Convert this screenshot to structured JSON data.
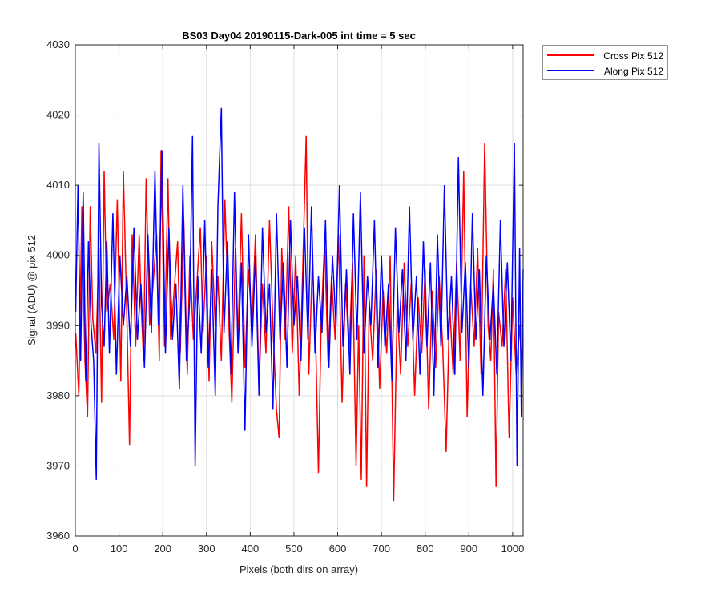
{
  "chart_data": {
    "type": "line",
    "title": "BS03 Day04 20190115-Dark-005 int time = 5 sec",
    "xlabel": "Pixels (both dirs on array)",
    "ylabel": "Signal (ADU) @ pix 512",
    "xlim": [
      0,
      1024
    ],
    "ylim": [
      3960,
      4030
    ],
    "xticks": [
      0,
      100,
      200,
      300,
      400,
      500,
      600,
      700,
      800,
      900,
      1000
    ],
    "yticks": [
      3960,
      3970,
      3980,
      3990,
      4000,
      4010,
      4020,
      4030
    ],
    "grid": true,
    "legend_position": "outside-top-right",
    "noise_summary": {
      "x_start": 1,
      "x_end": 1024,
      "approx_mean": 3993,
      "approx_range": [
        3965,
        4021
      ]
    },
    "series": [
      {
        "name": "Cross Pix 512",
        "color": "#ff0000",
        "points": [
          [
            1,
            3989
          ],
          [
            8,
            3980
          ],
          [
            15,
            4007
          ],
          [
            22,
            3985
          ],
          [
            28,
            3977
          ],
          [
            34,
            4007
          ],
          [
            40,
            3991
          ],
          [
            47,
            3986
          ],
          [
            54,
            4001
          ],
          [
            60,
            3979
          ],
          [
            66,
            4012
          ],
          [
            72,
            3992
          ],
          [
            80,
            3996
          ],
          [
            88,
            3988
          ],
          [
            96,
            4008
          ],
          [
            104,
            3982
          ],
          [
            110,
            4012
          ],
          [
            118,
            3991
          ],
          [
            124,
            3973
          ],
          [
            130,
            4003
          ],
          [
            138,
            3987
          ],
          [
            146,
            4003
          ],
          [
            150,
            3994
          ],
          [
            156,
            3985
          ],
          [
            162,
            4011
          ],
          [
            170,
            3990
          ],
          [
            178,
            3996
          ],
          [
            186,
            4003
          ],
          [
            192,
            3985
          ],
          [
            196,
            4015
          ],
          [
            204,
            3987
          ],
          [
            212,
            4011
          ],
          [
            218,
            3988
          ],
          [
            226,
            3995
          ],
          [
            234,
            4002
          ],
          [
            240,
            3986
          ],
          [
            248,
            4005
          ],
          [
            256,
            3983
          ],
          [
            262,
            4000
          ],
          [
            270,
            3988
          ],
          [
            278,
            3996
          ],
          [
            286,
            4004
          ],
          [
            292,
            3989
          ],
          [
            300,
            4000
          ],
          [
            306,
            3982
          ],
          [
            312,
            4002
          ],
          [
            320,
            3990
          ],
          [
            326,
            3997
          ],
          [
            334,
            3985
          ],
          [
            342,
            4008
          ],
          [
            350,
            3992
          ],
          [
            358,
            3979
          ],
          [
            366,
            4001
          ],
          [
            372,
            3988
          ],
          [
            380,
            4006
          ],
          [
            388,
            3984
          ],
          [
            396,
            3998
          ],
          [
            404,
            3990
          ],
          [
            412,
            4003
          ],
          [
            420,
            3981
          ],
          [
            428,
            3996
          ],
          [
            436,
            3986
          ],
          [
            444,
            4005
          ],
          [
            452,
            3990
          ],
          [
            460,
            3978
          ],
          [
            466,
            3974
          ],
          [
            472,
            4001
          ],
          [
            480,
            3988
          ],
          [
            488,
            4007
          ],
          [
            496,
            3986
          ],
          [
            504,
            4000
          ],
          [
            512,
            3980
          ],
          [
            520,
            3998
          ],
          [
            528,
            4017
          ],
          [
            534,
            3983
          ],
          [
            542,
            3999
          ],
          [
            550,
            3987
          ],
          [
            556,
            3969
          ],
          [
            562,
            3990
          ],
          [
            570,
            4002
          ],
          [
            578,
            3985
          ],
          [
            586,
            3997
          ],
          [
            594,
            3988
          ],
          [
            602,
            4003
          ],
          [
            610,
            3979
          ],
          [
            618,
            3996
          ],
          [
            626,
            3986
          ],
          [
            634,
            3999
          ],
          [
            642,
            3970
          ],
          [
            648,
            3990
          ],
          [
            654,
            3968
          ],
          [
            660,
            4000
          ],
          [
            666,
            3967
          ],
          [
            672,
            3993
          ],
          [
            680,
            3985
          ],
          [
            688,
            3998
          ],
          [
            696,
            3981
          ],
          [
            704,
            3995
          ],
          [
            712,
            3986
          ],
          [
            720,
            4000
          ],
          [
            728,
            3965
          ],
          [
            736,
            3993
          ],
          [
            744,
            3983
          ],
          [
            752,
            3999
          ],
          [
            760,
            3987
          ],
          [
            768,
            3996
          ],
          [
            776,
            3980
          ],
          [
            784,
            3994
          ],
          [
            792,
            3986
          ],
          [
            800,
            3998
          ],
          [
            808,
            3978
          ],
          [
            816,
            3995
          ],
          [
            824,
            3984
          ],
          [
            832,
            3997
          ],
          [
            840,
            3987
          ],
          [
            848,
            3972
          ],
          [
            856,
            3993
          ],
          [
            864,
            3983
          ],
          [
            872,
            3999
          ],
          [
            880,
            3985
          ],
          [
            888,
            4012
          ],
          [
            896,
            3977
          ],
          [
            904,
            3996
          ],
          [
            912,
            3987
          ],
          [
            920,
            4001
          ],
          [
            928,
            3983
          ],
          [
            936,
            4016
          ],
          [
            944,
            3990
          ],
          [
            950,
            3985
          ],
          [
            956,
            3998
          ],
          [
            962,
            3967
          ],
          [
            968,
            3992
          ],
          [
            976,
            3987
          ],
          [
            984,
            3998
          ],
          [
            992,
            3974
          ],
          [
            1000,
            3994
          ],
          [
            1008,
            3983
          ],
          [
            1016,
            3990
          ],
          [
            1020,
            3985
          ],
          [
            1024,
            3988
          ]
        ]
      },
      {
        "name": "Along Pix 512",
        "color": "#0000ff",
        "points": [
          [
            1,
            3992
          ],
          [
            6,
            4010
          ],
          [
            12,
            3985
          ],
          [
            18,
            4009
          ],
          [
            24,
            3982
          ],
          [
            30,
            4002
          ],
          [
            36,
            3990
          ],
          [
            42,
            3985
          ],
          [
            48,
            3968
          ],
          [
            54,
            4016
          ],
          [
            60,
            3993
          ],
          [
            66,
            3987
          ],
          [
            72,
            4002
          ],
          [
            78,
            3986
          ],
          [
            86,
            4006
          ],
          [
            94,
            3983
          ],
          [
            102,
            4000
          ],
          [
            110,
            3990
          ],
          [
            118,
            3997
          ],
          [
            126,
            3987
          ],
          [
            134,
            4004
          ],
          [
            142,
            3988
          ],
          [
            150,
            3996
          ],
          [
            158,
            3984
          ],
          [
            166,
            4003
          ],
          [
            174,
            3989
          ],
          [
            182,
            4012
          ],
          [
            190,
            3990
          ],
          [
            198,
            4015
          ],
          [
            206,
            3986
          ],
          [
            214,
            4004
          ],
          [
            222,
            3988
          ],
          [
            230,
            3996
          ],
          [
            238,
            3981
          ],
          [
            246,
            4010
          ],
          [
            254,
            3985
          ],
          [
            262,
            3994
          ],
          [
            268,
            4017
          ],
          [
            274,
            3970
          ],
          [
            280,
            3997
          ],
          [
            288,
            3986
          ],
          [
            296,
            4005
          ],
          [
            304,
            3984
          ],
          [
            312,
            3998
          ],
          [
            320,
            3980
          ],
          [
            326,
            4007
          ],
          [
            334,
            4021
          ],
          [
            340,
            3989
          ],
          [
            348,
            4002
          ],
          [
            356,
            3983
          ],
          [
            364,
            4009
          ],
          [
            372,
            3986
          ],
          [
            380,
            3999
          ],
          [
            388,
            3975
          ],
          [
            396,
            4003
          ],
          [
            404,
            3987
          ],
          [
            412,
            4000
          ],
          [
            420,
            3980
          ],
          [
            428,
            4004
          ],
          [
            436,
            3989
          ],
          [
            444,
            3996
          ],
          [
            452,
            3978
          ],
          [
            460,
            4006
          ],
          [
            468,
            3988
          ],
          [
            476,
            3999
          ],
          [
            484,
            3984
          ],
          [
            492,
            4005
          ],
          [
            500,
            3990
          ],
          [
            508,
            3997
          ],
          [
            516,
            3985
          ],
          [
            524,
            4004
          ],
          [
            532,
            3988
          ],
          [
            540,
            4007
          ],
          [
            548,
            3986
          ],
          [
            556,
            3997
          ],
          [
            564,
            3989
          ],
          [
            572,
            4005
          ],
          [
            580,
            3984
          ],
          [
            588,
            4000
          ],
          [
            596,
            3990
          ],
          [
            604,
            4010
          ],
          [
            612,
            3987
          ],
          [
            620,
            3998
          ],
          [
            628,
            3983
          ],
          [
            636,
            4006
          ],
          [
            644,
            3988
          ],
          [
            652,
            4009
          ],
          [
            660,
            3986
          ],
          [
            668,
            3997
          ],
          [
            676,
            3990
          ],
          [
            684,
            4005
          ],
          [
            692,
            3984
          ],
          [
            700,
            4000
          ],
          [
            708,
            3987
          ],
          [
            716,
            3996
          ],
          [
            724,
            3982
          ],
          [
            732,
            4004
          ],
          [
            740,
            3989
          ],
          [
            748,
            3998
          ],
          [
            756,
            3985
          ],
          [
            764,
            4007
          ],
          [
            772,
            3988
          ],
          [
            780,
            3997
          ],
          [
            788,
            3983
          ],
          [
            796,
            4002
          ],
          [
            804,
            3987
          ],
          [
            812,
            3999
          ],
          [
            820,
            3980
          ],
          [
            828,
            4003
          ],
          [
            836,
            3987
          ],
          [
            844,
            4010
          ],
          [
            852,
            3988
          ],
          [
            860,
            3997
          ],
          [
            868,
            3983
          ],
          [
            876,
            4014
          ],
          [
            884,
            3989
          ],
          [
            892,
            3999
          ],
          [
            900,
            3984
          ],
          [
            908,
            4006
          ],
          [
            916,
            3988
          ],
          [
            924,
            3998
          ],
          [
            932,
            3980
          ],
          [
            940,
            4000
          ],
          [
            948,
            3988
          ],
          [
            956,
            3996
          ],
          [
            964,
            3983
          ],
          [
            972,
            4005
          ],
          [
            980,
            3987
          ],
          [
            988,
            3999
          ],
          [
            996,
            3985
          ],
          [
            1004,
            4016
          ],
          [
            1010,
            3970
          ],
          [
            1016,
            4001
          ],
          [
            1020,
            3977
          ],
          [
            1024,
            3998
          ]
        ]
      }
    ]
  }
}
